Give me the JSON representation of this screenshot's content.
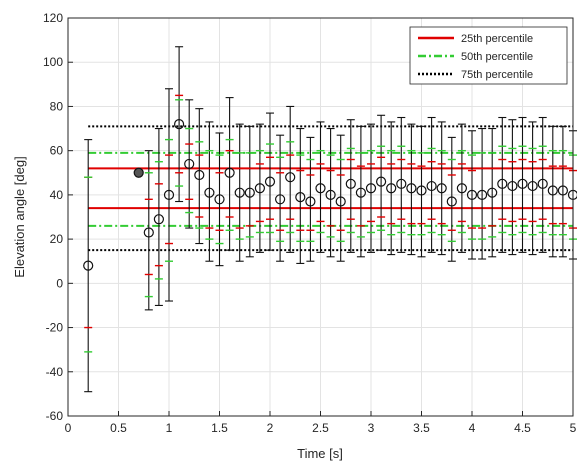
{
  "chart_data": {
    "type": "scatter",
    "xlabel": "Time [s]",
    "ylabel": "Elevation angle [deg]",
    "xlim": [
      0,
      5
    ],
    "ylim": [
      -60,
      120
    ],
    "xticks": [
      0,
      0.5,
      1,
      1.5,
      2,
      2.5,
      3,
      3.5,
      4,
      4.5,
      5
    ],
    "xtick_labels": [
      "0",
      "0.5",
      "1",
      "1.5",
      "2",
      "2.5",
      "3",
      "3.5",
      "4",
      "4.5",
      "5"
    ],
    "yticks": [
      -60,
      -40,
      -20,
      0,
      20,
      40,
      60,
      80,
      100,
      120
    ],
    "ytick_labels": [
      "-60",
      "-40",
      "-20",
      "0",
      "20",
      "40",
      "60",
      "80",
      "100",
      "120"
    ],
    "grid": true,
    "legend_position": "top-right",
    "reference_lines": [
      {
        "name": "25th percentile",
        "color": "#e00000",
        "style": "solid",
        "values": [
          34,
          52
        ]
      },
      {
        "name": "50th percentile",
        "color": "#33cc33",
        "style": "dashdot",
        "values": [
          26,
          59
        ]
      },
      {
        "name": "75th percentile",
        "color": "#000000",
        "style": "dotted",
        "values": [
          15,
          71
        ]
      }
    ],
    "series": [
      {
        "name": "",
        "x": [
          0.2,
          0.7,
          0.8,
          0.9,
          1.0,
          1.1,
          1.2,
          1.3,
          1.4,
          1.5,
          1.6,
          1.7,
          1.8,
          1.9,
          2.0,
          2.1,
          2.2,
          2.3,
          2.4,
          2.5,
          2.6,
          2.7,
          2.8,
          2.9,
          3.0,
          3.1,
          3.2,
          3.3,
          3.4,
          3.5,
          3.6,
          3.7,
          3.8,
          3.9,
          4.0,
          4.1,
          4.2,
          4.3,
          4.4,
          4.5,
          4.6,
          4.7,
          4.8,
          4.9,
          5.0
        ],
        "y": [
          8,
          50,
          23,
          29,
          40,
          72,
          54,
          49,
          41,
          38,
          50,
          41,
          41,
          43,
          46,
          38,
          48,
          39,
          37,
          43,
          40,
          37,
          45,
          41,
          43,
          46,
          43,
          45,
          43,
          42,
          44,
          43,
          37,
          43,
          40,
          40,
          41,
          45,
          44,
          45,
          44,
          45,
          42,
          42,
          40
        ],
        "err_low": [
          -49,
          50,
          -12,
          -10,
          -8,
          37,
          25,
          18,
          10,
          8,
          15,
          10,
          12,
          14,
          15,
          10,
          14,
          9,
          10,
          14,
          12,
          10,
          14,
          12,
          14,
          15,
          13,
          14,
          13,
          12,
          14,
          13,
          10,
          14,
          11,
          11,
          12,
          14,
          13,
          14,
          13,
          14,
          12,
          12,
          11
        ],
        "err_high": [
          65,
          50,
          60,
          70,
          88,
          107,
          83,
          79,
          73,
          68,
          84,
          72,
          71,
          72,
          77,
          67,
          80,
          70,
          66,
          73,
          70,
          67,
          74,
          71,
          72,
          76,
          73,
          75,
          72,
          71,
          75,
          73,
          66,
          72,
          69,
          70,
          70,
          75,
          74,
          75,
          73,
          75,
          71,
          71,
          69
        ],
        "p25_low": [
          -20,
          null,
          4,
          8,
          18,
          50,
          38,
          30,
          25,
          24,
          30,
          25,
          26,
          28,
          29,
          24,
          29,
          24,
          24,
          28,
          26,
          24,
          29,
          26,
          28,
          30,
          27,
          29,
          27,
          27,
          29,
          27,
          24,
          28,
          25,
          25,
          26,
          29,
          28,
          29,
          28,
          29,
          27,
          27,
          25
        ],
        "p25_high": [
          48,
          null,
          38,
          45,
          58,
          85,
          63,
          58,
          52,
          50,
          60,
          52,
          52,
          54,
          57,
          50,
          58,
          51,
          49,
          54,
          51,
          49,
          56,
          53,
          54,
          57,
          54,
          56,
          54,
          53,
          55,
          54,
          49,
          54,
          51,
          52,
          52,
          56,
          55,
          56,
          55,
          56,
          53,
          53,
          51
        ],
        "p50_low": [
          -31,
          null,
          -6,
          2,
          10,
          44,
          32,
          25,
          20,
          18,
          24,
          20,
          21,
          23,
          23,
          19,
          23,
          19,
          19,
          23,
          21,
          19,
          23,
          21,
          23,
          24,
          22,
          23,
          22,
          22,
          23,
          22,
          19,
          23,
          20,
          20,
          21,
          23,
          22,
          23,
          22,
          23,
          22,
          22,
          20
        ],
        "p50_high": [
          48,
          null,
          50,
          55,
          65,
          83,
          70,
          64,
          60,
          58,
          65,
          59,
          59,
          60,
          63,
          57,
          64,
          58,
          56,
          60,
          58,
          56,
          61,
          59,
          60,
          62,
          60,
          62,
          60,
          59,
          61,
          60,
          56,
          60,
          58,
          59,
          59,
          62,
          61,
          62,
          61,
          62,
          60,
          60,
          58
        ]
      }
    ]
  },
  "legend": {
    "items": [
      {
        "label": "25th percentile",
        "color": "#e00000",
        "style": "solid"
      },
      {
        "label": "50th percentile",
        "color": "#33cc33",
        "style": "dashdot"
      },
      {
        "label": "75th percentile",
        "color": "#000000",
        "style": "dotted"
      }
    ]
  }
}
